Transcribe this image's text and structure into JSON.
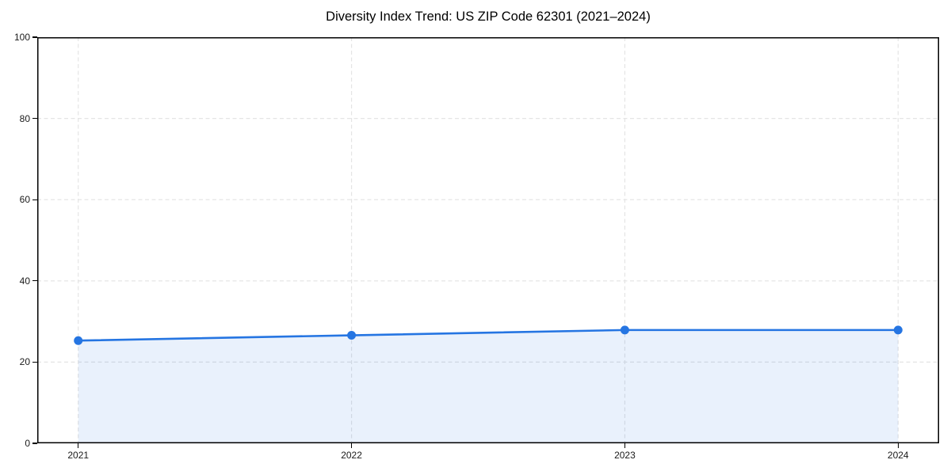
{
  "chart_data": {
    "type": "line",
    "title": "Diversity Index Trend: US ZIP Code 62301 (2021–2024)",
    "categories": [
      "2021",
      "2022",
      "2023",
      "2024"
    ],
    "x": [
      2021,
      2022,
      2023,
      2024
    ],
    "series": [
      {
        "name": "Diversity Index",
        "values": [
          25.3,
          26.6,
          27.9,
          27.9
        ]
      }
    ],
    "xlabel": "",
    "ylabel": "",
    "xlim": [
      2020.85,
      2024.15
    ],
    "ylim": [
      0,
      100
    ],
    "yticks": [
      0,
      20,
      40,
      60,
      80,
      100
    ],
    "grid": "dashed-both-axes",
    "legend": "none",
    "marker": "circle",
    "area_fill": true,
    "fill_opacity": 0.1,
    "line_width": 2.6,
    "marker_radius": 5.5,
    "colors": {
      "line": "#2575e2",
      "marker": "#2575e2",
      "grid": "#e4e4e4",
      "axis": "#000000",
      "background": "#ffffff",
      "text": "#1a1a1a"
    }
  }
}
